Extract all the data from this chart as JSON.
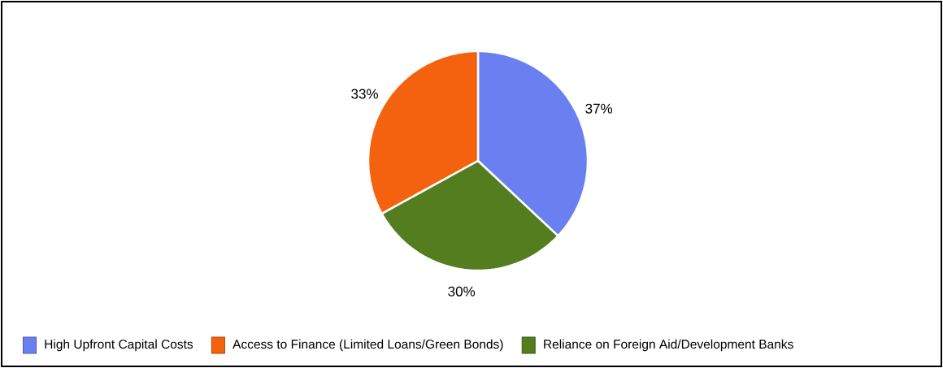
{
  "chart_data": {
    "type": "pie",
    "categories": [
      "High Upfront Capital Costs",
      "Access to Finance (Limited Loans/Green Bonds)",
      "Reliance on Foreign Aid/Development Banks"
    ],
    "values": [
      37,
      33,
      30
    ],
    "colors": [
      "#6a80f0",
      "#f5620f",
      "#537d1e"
    ],
    "value_labels": [
      "37%",
      "33%",
      "30%"
    ],
    "legend": "bottom"
  }
}
